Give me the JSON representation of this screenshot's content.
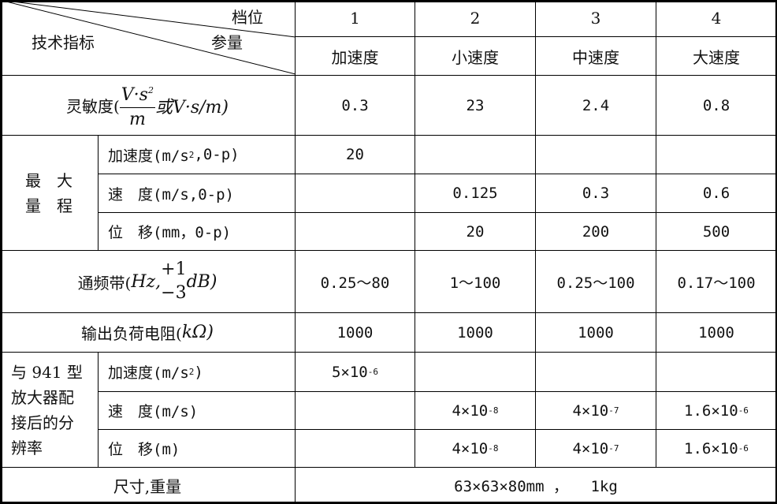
{
  "header": {
    "corner_top": "档位",
    "corner_mid": "参量",
    "corner_left": "技术指标",
    "gears": [
      "1",
      "2",
      "3",
      "4"
    ],
    "modes": [
      "加速度",
      "小速度",
      "中速度",
      "大速度"
    ]
  },
  "sensitivity": {
    "label_prefix": "灵敏度(",
    "frac_num": "V·s",
    "frac_num_exp": "2",
    "frac_den": "m",
    "label_suffix": "或V·s/m)",
    "values": [
      "0.3",
      "23",
      "2.4",
      "0.8"
    ]
  },
  "max_range": {
    "group_label_line1": "最　大",
    "group_label_line2": "量　程",
    "rows": [
      {
        "label": "加速度(m/s",
        "label_exp": "2",
        "label_tail": ",0-p)",
        "values": [
          "20",
          "",
          "",
          ""
        ]
      },
      {
        "label": "速　度(m/s,0-p)",
        "label_exp": "",
        "label_tail": "",
        "values": [
          "",
          "0.125",
          "0.3",
          "0.6"
        ]
      },
      {
        "label": "位　移(mm，0-p)",
        "label_exp": "",
        "label_tail": "",
        "values": [
          "",
          "20",
          "200",
          "500"
        ]
      }
    ]
  },
  "passband": {
    "label_prefix": "通频带(",
    "unit1": "Hz,",
    "upper": "+1",
    "lower": "−3",
    "unit2": "dB)",
    "values": [
      "0.25～80",
      "1～100",
      "0.25～100",
      "0.17～100"
    ]
  },
  "output_load": {
    "label_prefix": "输出负荷电阻(",
    "unit": "kΩ",
    "label_suffix": ")",
    "values": [
      "1000",
      "1000",
      "1000",
      "1000"
    ]
  },
  "resolution": {
    "group_label_lines": [
      "与 941 型",
      "放大器配",
      "接后的分",
      "辨率"
    ],
    "rows": [
      {
        "label": "加速度(m/s",
        "label_exp": "2",
        "label_tail": ")",
        "values": [
          {
            "base": "5×10",
            "exp": "-6"
          },
          {
            "base": "",
            "exp": ""
          },
          {
            "base": "",
            "exp": ""
          },
          {
            "base": "",
            "exp": ""
          }
        ]
      },
      {
        "label": "速　度(m/s)",
        "label_exp": "",
        "label_tail": "",
        "values": [
          {
            "base": "",
            "exp": ""
          },
          {
            "base": "4×10",
            "exp": "-8"
          },
          {
            "base": "4×10",
            "exp": "-7"
          },
          {
            "base": "1.6×10",
            "exp": "-6"
          }
        ]
      },
      {
        "label": "位　移(m)",
        "label_exp": "",
        "label_tail": "",
        "values": [
          {
            "base": "",
            "exp": ""
          },
          {
            "base": "4×10",
            "exp": "-8"
          },
          {
            "base": "4×10",
            "exp": "-7"
          },
          {
            "base": "1.6×10",
            "exp": "-6"
          }
        ]
      }
    ]
  },
  "size_weight": {
    "label": "尺寸,重量",
    "value": "63×63×80mm ，　　1kg"
  }
}
